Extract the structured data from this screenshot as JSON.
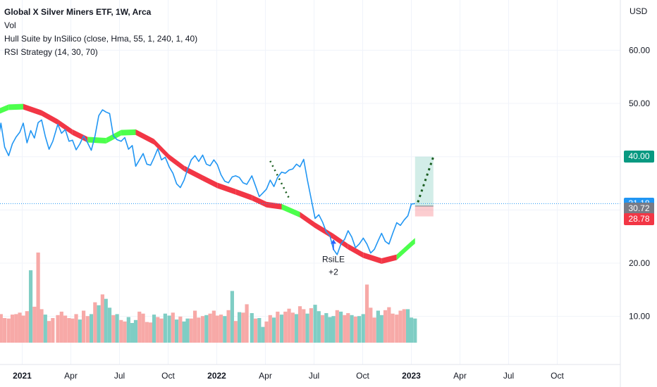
{
  "legend": {
    "title": "Global X Silver Miners ETF, 1W, Arca",
    "vol": "Vol",
    "hull": "Hull Suite by InSilico (close, Hma, 55, 1, 240, 1, 40)",
    "rsi": "RSI Strategy (14, 30, 70)"
  },
  "axis": {
    "currency": "USD"
  },
  "price_tags": {
    "target": "40.00",
    "last": "31.18",
    "entry": "30.72",
    "stop": "28.78"
  },
  "signal": {
    "label": "RsiLE",
    "qty": "+2"
  },
  "colors": {
    "price_line": "#2196f3",
    "hull_up": "#4cff4c",
    "hull_down": "#f23645",
    "vol_up": "#7fcdc4",
    "vol_down": "#f7a9a7",
    "target_tag": "#089981",
    "last_tag": "#2196f3",
    "entry_tag": "#787b86",
    "stop_tag": "#f23645"
  },
  "chart_data": {
    "type": "line",
    "y_axis": {
      "ticks": [
        "60.00",
        "50.00",
        "20.00",
        "10.00"
      ],
      "ylim": [
        0,
        70
      ]
    },
    "x_axis": {
      "ticks": [
        "2021",
        "Apr",
        "Jul",
        "Oct",
        "2022",
        "Apr",
        "Jul",
        "Oct",
        "2023",
        "Apr",
        "Jul",
        "Oct"
      ],
      "bold_ticks": [
        "2021",
        "2022",
        "2023"
      ],
      "xlim": [
        "2020-11-01",
        "2023-12-31"
      ]
    },
    "series": [
      {
        "name": "Global X Silver Miners ETF",
        "x": [
          "2020-11-01",
          "2020-11-08",
          "2020-11-15",
          "2020-11-22",
          "2020-11-29",
          "2020-12-06",
          "2020-12-13",
          "2020-12-20",
          "2020-12-27",
          "2021-01-03",
          "2021-01-10",
          "2021-01-17",
          "2021-01-24",
          "2021-01-31",
          "2021-02-07",
          "2021-02-14",
          "2021-02-21",
          "2021-02-28",
          "2021-03-07",
          "2021-03-14",
          "2021-03-21",
          "2021-03-28",
          "2021-04-04",
          "2021-04-11",
          "2021-04-18",
          "2021-04-25",
          "2021-05-02",
          "2021-05-09",
          "2021-05-16",
          "2021-05-23",
          "2021-05-30",
          "2021-06-06",
          "2021-06-13",
          "2021-06-20",
          "2021-06-27",
          "2021-07-04",
          "2021-07-11",
          "2021-07-18",
          "2021-07-25",
          "2021-08-01",
          "2021-08-08",
          "2021-08-15",
          "2021-08-22",
          "2021-08-29",
          "2021-09-05",
          "2021-09-12",
          "2021-09-19",
          "2021-09-26",
          "2021-10-03",
          "2021-10-10",
          "2021-10-17",
          "2021-10-24",
          "2021-10-31",
          "2021-11-07",
          "2021-11-14",
          "2021-11-21",
          "2021-11-28",
          "2021-12-05",
          "2021-12-12",
          "2021-12-19",
          "2021-12-26",
          "2022-01-02",
          "2022-01-09",
          "2022-01-16",
          "2022-01-23",
          "2022-01-30",
          "2022-02-06",
          "2022-02-13",
          "2022-02-20",
          "2022-02-27",
          "2022-03-06",
          "2022-03-13",
          "2022-03-20",
          "2022-03-27",
          "2022-04-03",
          "2022-04-10",
          "2022-04-17",
          "2022-04-24",
          "2022-05-01",
          "2022-05-08",
          "2022-05-15",
          "2022-05-22",
          "2022-05-29",
          "2022-06-05",
          "2022-06-12",
          "2022-06-19",
          "2022-06-26",
          "2022-07-03",
          "2022-07-10",
          "2022-07-17",
          "2022-07-24",
          "2022-07-31",
          "2022-08-07",
          "2022-08-14",
          "2022-08-21",
          "2022-08-28",
          "2022-09-04",
          "2022-09-11",
          "2022-09-18",
          "2022-09-25",
          "2022-10-02",
          "2022-10-09",
          "2022-10-16",
          "2022-10-23",
          "2022-10-30",
          "2022-11-06",
          "2022-11-13",
          "2022-11-20",
          "2022-11-27",
          "2022-12-04",
          "2022-12-11",
          "2022-12-18",
          "2022-12-25",
          "2023-01-01",
          "2023-01-08"
        ],
        "values": [
          46.6,
          45.9,
          41.9,
          46.3,
          41.8,
          40.2,
          42.4,
          43.7,
          44.6,
          46.3,
          42.6,
          44.9,
          43.5,
          46.4,
          46.9,
          43.8,
          41.4,
          42.9,
          46.1,
          44.4,
          45.1,
          42.9,
          43.1,
          41.3,
          42.4,
          43.9,
          42.6,
          41.2,
          43.9,
          47.7,
          48.8,
          48.4,
          48.1,
          43.9,
          43.2,
          42.9,
          43.6,
          41.4,
          42.1,
          38.2,
          39.4,
          40.6,
          38.6,
          38.4,
          39.8,
          41.5,
          39.4,
          39.9,
          38.1,
          36.9,
          34.9,
          34.2,
          35.6,
          37.6,
          39.4,
          40.2,
          39.1,
          40.3,
          38.6,
          38.3,
          39.4,
          38.5,
          36.6,
          35.4,
          35.1,
          36.2,
          36.4,
          36.1,
          35.1,
          34.8,
          36.4,
          34.5,
          32.5,
          33.2,
          33.9,
          35.6,
          34.4,
          36.1,
          37.1,
          36.9,
          37.5,
          37.7,
          38.6,
          38.1,
          39.5,
          35.6,
          32.1,
          28.4,
          29.1,
          27.7,
          25.9,
          25.1,
          22.6,
          21.6,
          23.6,
          24.5,
          26.1,
          24.9,
          22.9,
          23.6,
          24.7,
          23.6,
          21.9,
          22.6,
          24.2,
          25.6,
          24.1,
          23.6,
          25.6,
          27.6,
          27.1,
          28.1,
          28.9,
          31.1,
          31.2
        ]
      },
      {
        "name": "Hull Suite",
        "x": [
          "2020-11-01",
          "2020-12-06",
          "2021-01-03",
          "2021-02-07",
          "2021-03-07",
          "2021-04-04",
          "2021-05-02",
          "2021-06-06",
          "2021-07-04",
          "2021-08-01",
          "2021-09-05",
          "2021-10-03",
          "2021-10-31",
          "2021-12-05",
          "2022-01-02",
          "2022-02-06",
          "2022-03-06",
          "2022-04-03",
          "2022-05-01",
          "2022-06-05",
          "2022-07-03",
          "2022-08-07",
          "2022-09-04",
          "2022-10-02",
          "2022-11-06",
          "2022-12-04",
          "2023-01-01",
          "2023-01-08"
        ],
        "values": [
          47.8,
          49.3,
          49.4,
          48.2,
          46.5,
          44.6,
          43.2,
          43.0,
          44.5,
          44.6,
          42.8,
          39.9,
          37.8,
          36.0,
          34.6,
          33.4,
          32.3,
          31.0,
          30.6,
          29.1,
          27.1,
          25.0,
          23.1,
          21.5,
          20.4,
          21.1,
          23.6,
          24.2
        ],
        "colors_by_segment": [
          "up",
          "up",
          "down",
          "down",
          "down",
          "down",
          "up",
          "up",
          "up",
          "down",
          "down",
          "down",
          "down",
          "down",
          "down",
          "down",
          "down",
          "down",
          "up",
          "down",
          "down",
          "down",
          "down",
          "down",
          "down",
          "up",
          "up"
        ]
      }
    ],
    "volume": {
      "values": [
        5.6,
        5.9,
        6.7,
        5.8,
        5.0,
        4.9,
        5.7,
        5.8,
        6.1,
        5.5,
        6.4,
        14.7,
        7.3,
        18.3,
        6.8,
        5.7,
        4.4,
        5.0,
        5.6,
        6.3,
        5.5,
        5.0,
        4.9,
        5.8,
        4.7,
        6.5,
        5.4,
        5.8,
        8.2,
        7.6,
        9.8,
        8.9,
        7.1,
        5.6,
        5.8,
        4.6,
        4.3,
        5.2,
        4.0,
        4.6,
        6.3,
        5.9,
        4.2,
        4.1,
        5.7,
        5.2,
        4.9,
        5.9,
        5.5,
        6.1,
        4.7,
        5.3,
        4.3,
        4.9,
        4.9,
        6.5,
        5.1,
        5.4,
        5.6,
        5.9,
        6.5,
        5.5,
        5.7,
        5.4,
        6.6,
        10.5,
        4.4,
        6.2,
        6.1,
        7.8,
        6.0,
        4.9,
        5.0,
        3.2,
        4.3,
        5.6,
        5.1,
        6.3,
        5.7,
        6.3,
        6.9,
        6.1,
        5.8,
        7.4,
        6.8,
        5.9,
        7.0,
        7.7,
        6.4,
        5.6,
        6.0,
        5.2,
        5.4,
        6.6,
        6.3,
        5.6,
        6.0,
        5.6,
        5.3,
        5.4,
        5.8,
        11.8,
        7.1,
        5.1,
        6.5,
        5.6,
        6.6,
        7.2,
        5.9,
        5.7,
        6.5,
        6.8,
        6.8,
        5.1,
        4.9
      ],
      "direction": [
        "down",
        "down",
        "up",
        "down",
        "down",
        "down",
        "down",
        "down",
        "down",
        "down",
        "down",
        "up",
        "down",
        "down",
        "down",
        "up",
        "down",
        "down",
        "down",
        "down",
        "down",
        "down",
        "down",
        "down",
        "up",
        "down",
        "down",
        "up",
        "down",
        "up",
        "down",
        "up",
        "up",
        "down",
        "up",
        "down",
        "down",
        "up",
        "up",
        "up",
        "down",
        "down",
        "down",
        "down",
        "up",
        "down",
        "down",
        "up",
        "up",
        "down",
        "up",
        "down",
        "up",
        "up",
        "down",
        "down",
        "down",
        "down",
        "up",
        "down",
        "down",
        "down",
        "down",
        "up",
        "down",
        "up",
        "down",
        "up",
        "down",
        "down",
        "up",
        "down",
        "up",
        "up",
        "down",
        "down",
        "up",
        "down",
        "up",
        "down",
        "down",
        "down",
        "up",
        "down",
        "down",
        "up",
        "down",
        "up",
        "up",
        "down",
        "up",
        "up",
        "up",
        "down",
        "up",
        "down",
        "down",
        "up",
        "down",
        "up",
        "up",
        "down",
        "down",
        "down",
        "up",
        "up",
        "down",
        "down",
        "down",
        "down",
        "down",
        "down",
        "up",
        "up",
        "up"
      ]
    },
    "strategy": {
      "signal_date": "2022-08-07",
      "signal_price": 25.1,
      "entry_date": "2023-01-08",
      "entry": 30.72,
      "target": 40.0,
      "stop": 28.78,
      "last_price": 31.18,
      "projection_end_date": "2023-02-12"
    },
    "grid": true
  }
}
